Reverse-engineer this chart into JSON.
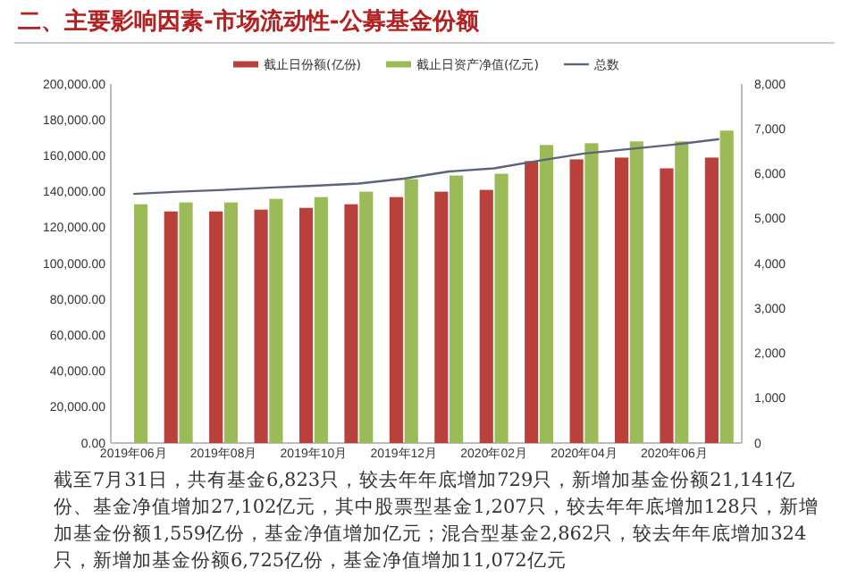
{
  "chart_data": {
    "type": "bar",
    "title": "二、主要影响因素-市场流动性-公募基金份额",
    "categories": [
      "2019年06月",
      null,
      "2019年08月",
      null,
      "2019年10月",
      null,
      "2019年12月",
      null,
      "2020年02月",
      null,
      "2020年04月",
      null,
      "2020年06月",
      null
    ],
    "series": [
      {
        "name": "截止日份额(亿份)",
        "color": "#b9403b",
        "values": [
          null,
          129000,
          129000,
          130000,
          131000,
          133000,
          137000,
          140000,
          141000,
          157000,
          158000,
          159000,
          153000,
          159000
        ]
      },
      {
        "name": "截止日资产净值(亿元)",
        "color": "#9bbb59",
        "values": [
          133000,
          134000,
          134000,
          136000,
          137000,
          140000,
          147000,
          149000,
          150000,
          166000,
          167000,
          168000,
          168000,
          174000
        ]
      },
      {
        "name": "总数",
        "type": "line",
        "axis": "y2",
        "color": "#5b6478",
        "values": [
          5550,
          5600,
          5640,
          5690,
          5730,
          5780,
          5890,
          6050,
          6120,
          6290,
          6450,
          6550,
          6650,
          6770
        ]
      }
    ],
    "ylim": [
      0,
      200000
    ],
    "yticks": [
      {
        "value": 0,
        "label": "0.00"
      },
      {
        "value": 20000,
        "label": "20,000.00"
      },
      {
        "value": 40000,
        "label": "40,000.00"
      },
      {
        "value": 60000,
        "label": "60,000.00"
      },
      {
        "value": 80000,
        "label": "80,000.00"
      },
      {
        "value": 100000,
        "label": "100,000.00"
      },
      {
        "value": 120000,
        "label": "120,000.00"
      },
      {
        "value": 140000,
        "label": "140,000.00"
      },
      {
        "value": 160000,
        "label": "160,000.00"
      },
      {
        "value": 180000,
        "label": "180,000.00"
      },
      {
        "value": 200000,
        "label": "200,000.00"
      }
    ],
    "y2lim": [
      0,
      8000
    ],
    "y2ticks": [
      0,
      {
        "value": 1000,
        "label": "1,000"
      },
      {
        "value": 2000,
        "label": "2,000"
      },
      {
        "value": 3000,
        "label": "3,000"
      },
      {
        "value": 4000,
        "label": "4,000"
      },
      {
        "value": 5000,
        "label": "5,000"
      },
      {
        "value": 6000,
        "label": "6,000"
      },
      {
        "value": 7000,
        "label": "7,000"
      },
      {
        "value": 8000,
        "label": "8,000"
      }
    ],
    "legend": "top",
    "grid": false,
    "annotations": [
      "截至7月31日，共有基金6,823只，较去年年底增加729只，新增加基金份额21,141亿份、基金净值增加27,102亿元，其中股票型基金1,207只，较去年年底增加128只，新增加基金份额1,559亿份，基金净值增加亿元；混合型基金2,862只，较去年年底增加324只，新增加基金份额6,725亿份，基金净值增加11,072亿元"
    ]
  }
}
